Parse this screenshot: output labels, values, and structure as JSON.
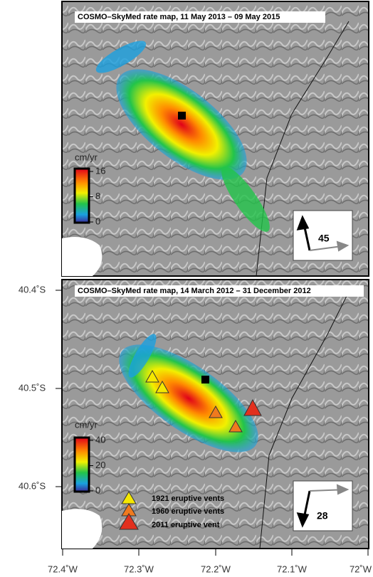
{
  "panels": [
    {
      "title": "COSMO–SkyMed rate map, 11 May 2013 – 09 May 2015",
      "colorbar": {
        "label": "cm/yr",
        "ticks": [
          0,
          8,
          16
        ]
      },
      "heading": 45
    },
    {
      "title": "COSMO–SkyMed rate map, 14 March 2012 – 31 December 2012",
      "colorbar": {
        "label": "cm/yr",
        "ticks": [
          0,
          20,
          40
        ]
      },
      "heading": 28
    }
  ],
  "legend": [
    "1921 eruptive vents",
    "1960 eruptive vents",
    "2011 eruptive vent"
  ],
  "lat_labels": [
    "40.4˚S",
    "40.5˚S",
    "40.6˚S"
  ],
  "lon_labels": [
    "72.4˚W",
    "72.3˚W",
    "72.2˚W",
    "72.1˚W",
    "72˚W"
  ]
}
